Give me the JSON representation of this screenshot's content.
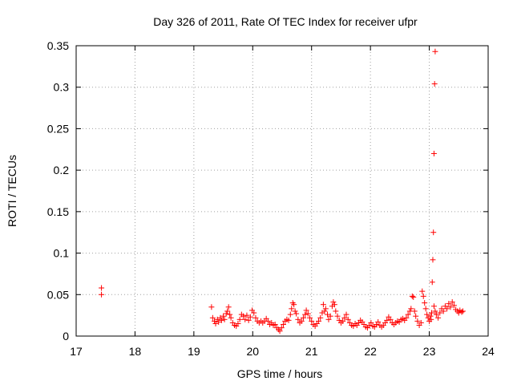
{
  "chart_data": {
    "type": "scatter",
    "title": "Day 326 of 2011, Rate Of TEC Index for receiver ufpr",
    "xlabel": "GPS time / hours",
    "ylabel": "ROTI / TECUs",
    "xlim": [
      17,
      24
    ],
    "ylim": [
      0,
      0.35
    ],
    "x_ticks": [
      17,
      18,
      19,
      20,
      21,
      22,
      23,
      24
    ],
    "y_ticks": [
      0,
      0.05,
      0.1,
      0.15,
      0.2,
      0.25,
      0.3,
      0.35
    ],
    "x_tick_labels": [
      "17",
      "18",
      "19",
      "20",
      "21",
      "22",
      "23",
      "24"
    ],
    "y_tick_labels": [
      "0",
      "0.05",
      "0.1",
      "0.15",
      "0.2",
      "0.25",
      "0.3",
      "0.35"
    ],
    "grid": true,
    "marker": "+",
    "color": "#ff0000",
    "series": [
      {
        "points": [
          [
            17.43,
            0.058
          ],
          [
            17.43,
            0.05
          ],
          [
            19.3,
            0.035
          ],
          [
            19.32,
            0.022
          ],
          [
            19.35,
            0.018
          ],
          [
            19.37,
            0.015
          ],
          [
            19.4,
            0.02
          ],
          [
            19.42,
            0.017
          ],
          [
            19.45,
            0.022
          ],
          [
            19.47,
            0.019
          ],
          [
            19.5,
            0.024
          ],
          [
            19.52,
            0.02
          ],
          [
            19.55,
            0.027
          ],
          [
            19.57,
            0.03
          ],
          [
            19.59,
            0.035
          ],
          [
            19.61,
            0.026
          ],
          [
            19.63,
            0.022
          ],
          [
            19.66,
            0.016
          ],
          [
            19.69,
            0.013
          ],
          [
            19.72,
            0.012
          ],
          [
            19.75,
            0.015
          ],
          [
            19.78,
            0.02
          ],
          [
            19.81,
            0.026
          ],
          [
            19.84,
            0.024
          ],
          [
            19.87,
            0.02
          ],
          [
            19.9,
            0.025
          ],
          [
            19.93,
            0.019
          ],
          [
            19.96,
            0.023
          ],
          [
            19.99,
            0.031
          ],
          [
            20.02,
            0.028
          ],
          [
            20.05,
            0.022
          ],
          [
            20.08,
            0.018
          ],
          [
            20.11,
            0.016
          ],
          [
            20.14,
            0.018
          ],
          [
            20.17,
            0.016
          ],
          [
            20.2,
            0.018
          ],
          [
            20.23,
            0.021
          ],
          [
            20.26,
            0.018
          ],
          [
            20.29,
            0.014
          ],
          [
            20.32,
            0.016
          ],
          [
            20.35,
            0.013
          ],
          [
            20.38,
            0.014
          ],
          [
            20.41,
            0.01
          ],
          [
            20.44,
            0.008
          ],
          [
            20.46,
            0.006
          ],
          [
            20.49,
            0.01
          ],
          [
            20.52,
            0.014
          ],
          [
            20.55,
            0.018
          ],
          [
            20.58,
            0.02
          ],
          [
            20.61,
            0.019
          ],
          [
            20.64,
            0.026
          ],
          [
            20.66,
            0.033
          ],
          [
            20.68,
            0.04
          ],
          [
            20.7,
            0.038
          ],
          [
            20.72,
            0.03
          ],
          [
            20.74,
            0.027
          ],
          [
            20.77,
            0.02
          ],
          [
            20.8,
            0.016
          ],
          [
            20.83,
            0.018
          ],
          [
            20.86,
            0.022
          ],
          [
            20.89,
            0.026
          ],
          [
            20.91,
            0.031
          ],
          [
            20.94,
            0.027
          ],
          [
            20.97,
            0.022
          ],
          [
            21.0,
            0.018
          ],
          [
            21.03,
            0.014
          ],
          [
            21.06,
            0.012
          ],
          [
            21.09,
            0.015
          ],
          [
            21.12,
            0.018
          ],
          [
            21.15,
            0.022
          ],
          [
            21.18,
            0.028
          ],
          [
            21.2,
            0.038
          ],
          [
            21.22,
            0.03
          ],
          [
            21.24,
            0.033
          ],
          [
            21.27,
            0.026
          ],
          [
            21.29,
            0.02
          ],
          [
            21.32,
            0.024
          ],
          [
            21.35,
            0.036
          ],
          [
            21.37,
            0.041
          ],
          [
            21.39,
            0.038
          ],
          [
            21.41,
            0.03
          ],
          [
            21.44,
            0.024
          ],
          [
            21.47,
            0.019
          ],
          [
            21.5,
            0.016
          ],
          [
            21.53,
            0.018
          ],
          [
            21.56,
            0.022
          ],
          [
            21.59,
            0.026
          ],
          [
            21.62,
            0.02
          ],
          [
            21.65,
            0.016
          ],
          [
            21.68,
            0.013
          ],
          [
            21.71,
            0.012
          ],
          [
            21.74,
            0.015
          ],
          [
            21.77,
            0.013
          ],
          [
            21.8,
            0.016
          ],
          [
            21.83,
            0.019
          ],
          [
            21.86,
            0.017
          ],
          [
            21.89,
            0.014
          ],
          [
            21.92,
            0.011
          ],
          [
            21.95,
            0.01
          ],
          [
            21.98,
            0.013
          ],
          [
            22.01,
            0.016
          ],
          [
            22.04,
            0.012
          ],
          [
            22.07,
            0.011
          ],
          [
            22.1,
            0.014
          ],
          [
            22.13,
            0.017
          ],
          [
            22.16,
            0.013
          ],
          [
            22.19,
            0.011
          ],
          [
            22.22,
            0.013
          ],
          [
            22.25,
            0.016
          ],
          [
            22.28,
            0.019
          ],
          [
            22.31,
            0.023
          ],
          [
            22.34,
            0.02
          ],
          [
            22.37,
            0.016
          ],
          [
            22.4,
            0.014
          ],
          [
            22.43,
            0.016
          ],
          [
            22.46,
            0.018
          ],
          [
            22.49,
            0.017
          ],
          [
            22.52,
            0.02
          ],
          [
            22.55,
            0.021
          ],
          [
            22.58,
            0.019
          ],
          [
            22.61,
            0.022
          ],
          [
            22.64,
            0.026
          ],
          [
            22.67,
            0.03
          ],
          [
            22.69,
            0.033
          ],
          [
            22.71,
            0.048
          ],
          [
            22.73,
            0.047
          ],
          [
            22.75,
            0.03
          ],
          [
            22.77,
            0.024
          ],
          [
            22.8,
            0.018
          ],
          [
            22.83,
            0.013
          ],
          [
            22.86,
            0.016
          ],
          [
            22.88,
            0.054
          ],
          [
            22.9,
            0.048
          ],
          [
            22.92,
            0.04
          ],
          [
            22.94,
            0.033
          ],
          [
            22.96,
            0.026
          ],
          [
            22.98,
            0.022
          ],
          [
            23.0,
            0.018
          ],
          [
            23.02,
            0.024
          ],
          [
            23.03,
            0.02
          ],
          [
            23.04,
            0.028
          ],
          [
            23.05,
            0.065
          ],
          [
            23.06,
            0.092
          ],
          [
            23.07,
            0.125
          ],
          [
            23.08,
            0.22
          ],
          [
            23.09,
            0.304
          ],
          [
            23.1,
            0.343
          ],
          [
            23.08,
            0.036
          ],
          [
            23.1,
            0.03
          ],
          [
            23.12,
            0.026
          ],
          [
            23.15,
            0.022
          ],
          [
            23.18,
            0.028
          ],
          [
            23.21,
            0.033
          ],
          [
            23.24,
            0.03
          ],
          [
            23.27,
            0.036
          ],
          [
            23.3,
            0.033
          ],
          [
            23.33,
            0.039
          ],
          [
            23.36,
            0.035
          ],
          [
            23.39,
            0.041
          ],
          [
            23.42,
            0.037
          ],
          [
            23.45,
            0.032
          ],
          [
            23.48,
            0.03
          ],
          [
            23.5,
            0.028
          ],
          [
            23.52,
            0.031
          ],
          [
            23.55,
            0.029
          ],
          [
            23.57,
            0.03
          ]
        ]
      }
    ]
  }
}
